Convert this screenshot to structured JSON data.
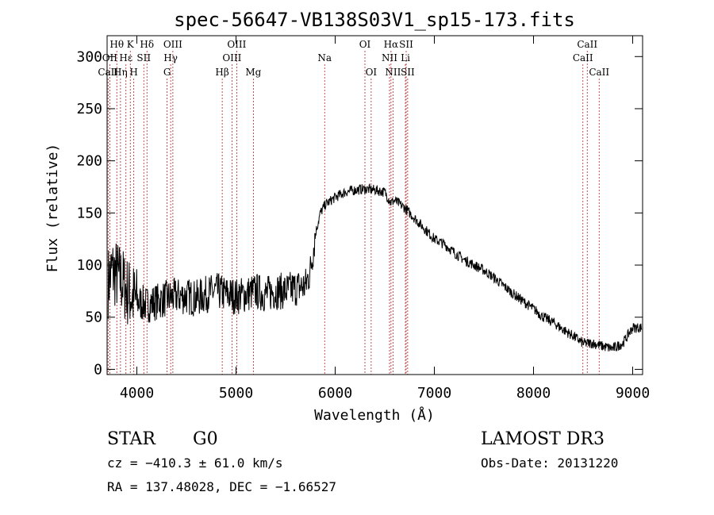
{
  "chart_data": {
    "type": "line",
    "title": "spec-56647-VB138S03V1_sp15-173.fits",
    "xlabel": "Wavelength (Å)",
    "ylabel": "Flux (relative)",
    "xlim": [
      3700,
      9100
    ],
    "ylim": [
      -5,
      320
    ],
    "x_ticks": [
      4000,
      5000,
      6000,
      7000,
      8000,
      9000
    ],
    "y_ticks": [
      0,
      50,
      100,
      150,
      200,
      250,
      300
    ],
    "x_tick_labels": [
      "4000",
      "5000",
      "6000",
      "7000",
      "8000",
      "9000"
    ],
    "y_tick_labels": [
      "0",
      "50",
      "100",
      "150",
      "200",
      "250",
      "300"
    ],
    "series": [
      {
        "name": "spectrum",
        "x": [
          3700,
          3750,
          3800,
          3850,
          3900,
          3950,
          4000,
          4100,
          4200,
          4300,
          4400,
          4500,
          4600,
          4700,
          4800,
          4900,
          5000,
          5100,
          5200,
          5300,
          5400,
          5500,
          5600,
          5700,
          5750,
          5800,
          5850,
          5900,
          6000,
          6100,
          6200,
          6300,
          6400,
          6500,
          6560,
          6600,
          6700,
          6800,
          6900,
          7000,
          7100,
          7200,
          7300,
          7400,
          7500,
          7600,
          7700,
          7800,
          7900,
          8000,
          8100,
          8200,
          8300,
          8400,
          8500,
          8600,
          8700,
          8800,
          8900,
          9000
        ],
        "values": [
          80,
          95,
          90,
          85,
          75,
          70,
          65,
          62,
          65,
          68,
          70,
          70,
          68,
          72,
          75,
          72,
          70,
          72,
          75,
          72,
          75,
          75,
          78,
          80,
          95,
          130,
          150,
          158,
          165,
          170,
          172,
          173,
          172,
          170,
          160,
          162,
          155,
          145,
          135,
          125,
          120,
          112,
          105,
          100,
          95,
          88,
          80,
          72,
          65,
          58,
          50,
          45,
          38,
          32,
          25,
          25,
          22,
          20,
          25,
          40
        ]
      }
    ],
    "lines": [
      {
        "label": "Hθ",
        "x": 3798,
        "row": 1
      },
      {
        "label": "OII",
        "x": 3727,
        "row": 2
      },
      {
        "label": "CaII",
        "x": 3710,
        "row": 3
      },
      {
        "label": "Hη",
        "x": 3835,
        "row": 3
      },
      {
        "label": "K",
        "x": 3934,
        "row": 1
      },
      {
        "label": "Hε",
        "x": 3890,
        "row": 2
      },
      {
        "label": "SII",
        "x": 4070,
        "row": 2
      },
      {
        "label": "H",
        "x": 3969,
        "row": 3
      },
      {
        "label": "Hδ",
        "x": 4102,
        "row": 1
      },
      {
        "label": "OIII",
        "x": 4363,
        "row": 1
      },
      {
        "label": "Hγ",
        "x": 4341,
        "row": 2
      },
      {
        "label": "G",
        "x": 4305,
        "row": 3
      },
      {
        "label": "Hβ",
        "x": 4861,
        "row": 3
      },
      {
        "label": "OIII",
        "x": 5007,
        "row": 1
      },
      {
        "label": "OIII",
        "x": 4959,
        "row": 2
      },
      {
        "label": "Mg",
        "x": 5175,
        "row": 3
      },
      {
        "label": "Na",
        "x": 5894,
        "row": 2
      },
      {
        "label": "OI",
        "x": 6300,
        "row": 1
      },
      {
        "label": "OI",
        "x": 6363,
        "row": 3
      },
      {
        "label": "Hα",
        "x": 6563,
        "row": 1
      },
      {
        "label": "NII",
        "x": 6548,
        "row": 2
      },
      {
        "label": "NII",
        "x": 6583,
        "row": 3
      },
      {
        "label": "SII",
        "x": 6716,
        "row": 1
      },
      {
        "label": "Li",
        "x": 6708,
        "row": 2
      },
      {
        "label": "SII",
        "x": 6731,
        "row": 3
      },
      {
        "label": "CaII",
        "x": 8542,
        "row": 1
      },
      {
        "label": "CaII",
        "x": 8498,
        "row": 2
      },
      {
        "label": "CaII",
        "x": 8662,
        "row": 3
      }
    ]
  },
  "info": {
    "object_class": "STAR",
    "subclass": "G0",
    "survey": "LAMOST DR3",
    "cz": "cz = −410.3 ± 61.0 km/s",
    "obs_date": "Obs-Date: 20131220",
    "coords": "RA = 137.48028, DEC =  −1.66527"
  },
  "colors": {
    "line_marker": "#b22222",
    "spectrum": "#000000"
  }
}
